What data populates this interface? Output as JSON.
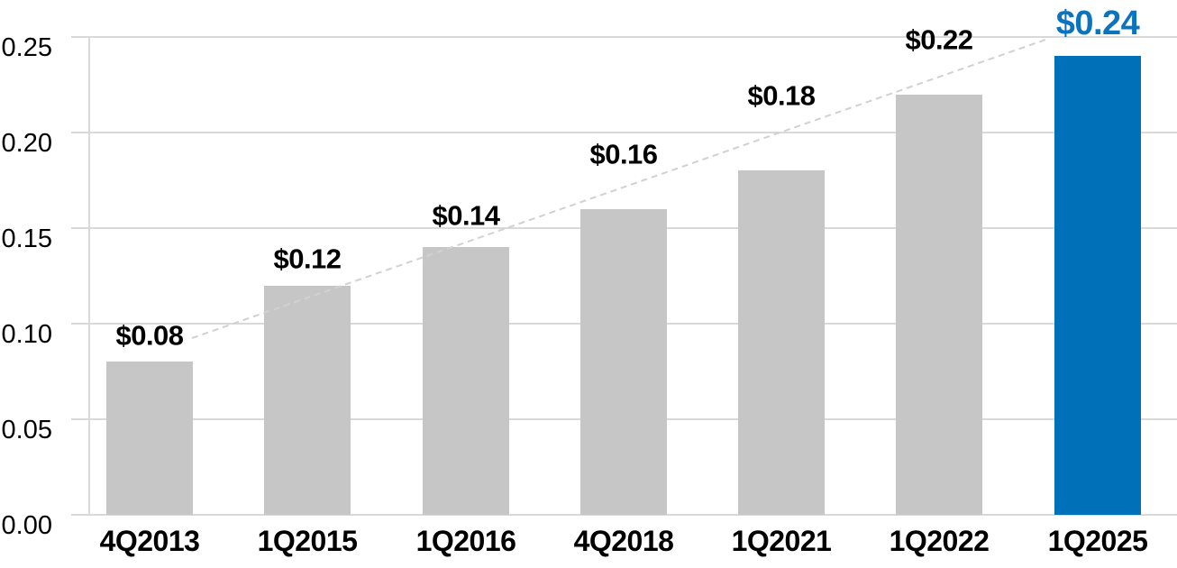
{
  "chart_data": {
    "type": "bar",
    "title": "",
    "xlabel": "",
    "ylabel": "",
    "categories": [
      "4Q2013",
      "1Q2015",
      "1Q2016",
      "4Q2018",
      "1Q2021",
      "1Q2022",
      "1Q2025"
    ],
    "values": [
      0.08,
      0.12,
      0.14,
      0.16,
      0.18,
      0.22,
      0.24
    ],
    "data_labels": [
      "$0.08",
      "$0.12",
      "$0.14",
      "$0.16",
      "$0.18",
      "$0.22",
      "$0.24"
    ],
    "highlight_index": 6,
    "y_axis": {
      "range": [
        0,
        0.25
      ],
      "ticks": [
        0,
        0.05,
        0.1,
        0.15,
        0.2,
        0.25
      ],
      "tick_labels": [
        "0.00",
        "0.05",
        "0.10",
        "0.15",
        "0.20",
        "0.25"
      ]
    },
    "grid": true,
    "legend": "none",
    "trendline": {
      "style": "dashed",
      "from_label": "$0.08",
      "to_label": "$0.24"
    },
    "colors": {
      "bar_default": "#C6C6C6",
      "bar_highlight": "#0070B8",
      "data_label_default": "#000000",
      "data_label_highlight": "#0C74BC",
      "axis_text": "#000000",
      "gridline": "#D9D9D9",
      "trendline": "#D1D1D1"
    },
    "label_y_centers": [
      372,
      287,
      239,
      171,
      106,
      44,
      26
    ]
  }
}
